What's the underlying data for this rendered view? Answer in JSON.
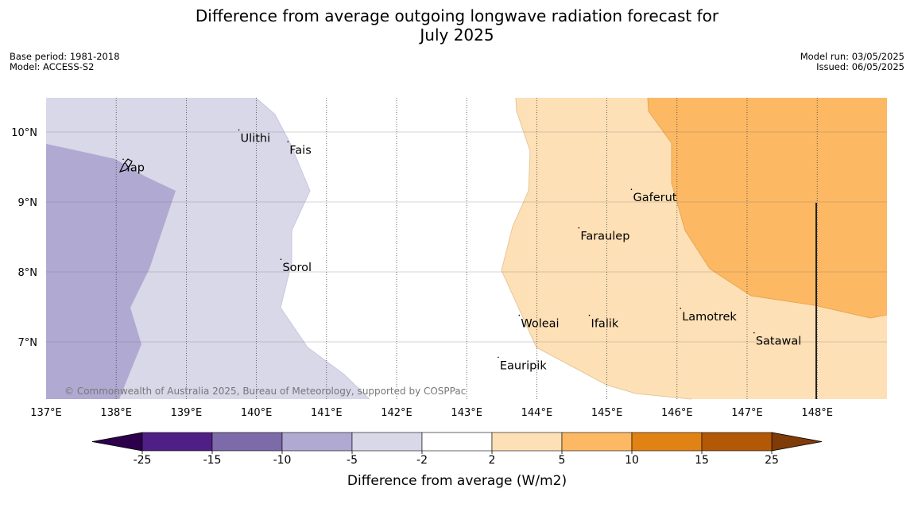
{
  "title_line1": "Difference from average outgoing longwave radiation forecast for",
  "title_line2": "July 2025",
  "meta_left": [
    "Base period: 1981-2018",
    "Model: ACCESS-S2"
  ],
  "meta_right": [
    "Model run: 03/05/2025",
    "Issued: 06/05/2025"
  ],
  "copyright": "© Commonwealth of Australia 2025, Bureau of Meteorology, supported by COSPPac",
  "map": {
    "lon_range": [
      137,
      149
    ],
    "lat_range": [
      6.2,
      10.5
    ],
    "lon_ticks": [
      137,
      138,
      139,
      140,
      141,
      142,
      143,
      144,
      145,
      146,
      147,
      148
    ],
    "lon_tick_labels": [
      "137°E",
      "138°E",
      "139°E",
      "140°E",
      "141°E",
      "142°E",
      "143°E",
      "144°E",
      "145°E",
      "146°E",
      "147°E",
      "148°E"
    ],
    "lat_ticks": [
      10,
      9,
      8,
      7
    ],
    "lat_tick_labels": [
      "10°N",
      "9°N",
      "8°N",
      "7°N"
    ],
    "places": [
      {
        "name": "Ulithi",
        "lon": 139.75,
        "lat": 9.95
      },
      {
        "name": "Fais",
        "lon": 140.45,
        "lat": 9.78
      },
      {
        "name": "Yap",
        "lon": 138.1,
        "lat": 9.53
      },
      {
        "name": "Gaferut",
        "lon": 145.35,
        "lat": 9.1
      },
      {
        "name": "Faraulep",
        "lon": 144.6,
        "lat": 8.55
      },
      {
        "name": "Sorol",
        "lon": 140.35,
        "lat": 8.1
      },
      {
        "name": "Lamotrek",
        "lon": 146.05,
        "lat": 7.4
      },
      {
        "name": "Woleai",
        "lon": 143.75,
        "lat": 7.3
      },
      {
        "name": "Ifalik",
        "lon": 144.75,
        "lat": 7.3
      },
      {
        "name": "Satawal",
        "lon": 147.1,
        "lat": 7.05
      },
      {
        "name": "Eauripik",
        "lon": 143.45,
        "lat": 6.7
      }
    ]
  },
  "colorbar": {
    "boundaries": [
      "-25",
      "-15",
      "-10",
      "-5",
      "-2",
      "2",
      "5",
      "10",
      "15",
      "25"
    ],
    "colors": [
      "#4f1f85",
      "#7d6aa8",
      "#b0a9d2",
      "#d8d8e9",
      "#ffffff",
      "#fee0b6",
      "#fdb863",
      "#e08214",
      "#b35806"
    ],
    "under_color": "#2d004b",
    "over_color": "#7f3b08",
    "label": "Difference from average (W/m2)"
  }
}
